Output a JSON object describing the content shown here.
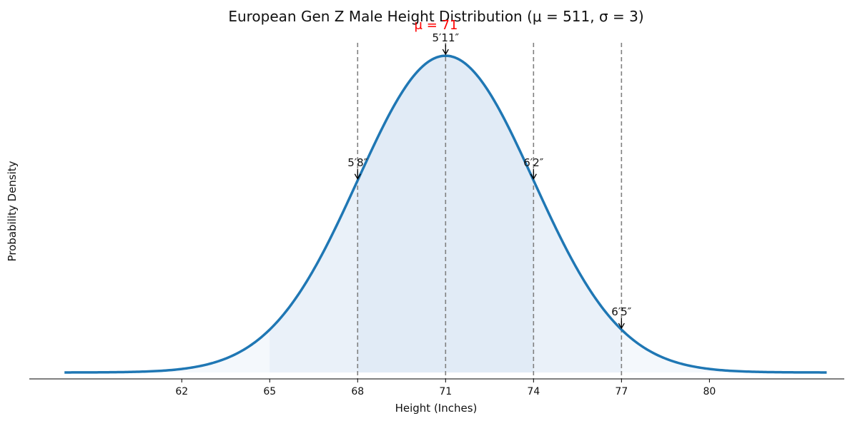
{
  "chart_data": {
    "type": "line",
    "title": "European Gen Z Male Height Distribution (μ = 511, σ = 3)",
    "xlabel": "Height (Inches)",
    "ylabel": "Probability Density",
    "mean": 71,
    "std": 3,
    "x_range": [
      58,
      84
    ],
    "xlim": [
      56.8,
      84.6
    ],
    "ylim": [
      -0.0027,
      0.139
    ],
    "x_ticks": [
      62,
      65,
      68,
      71,
      74,
      77,
      80
    ],
    "shaded_regions": [
      {
        "from": 58,
        "to": 84,
        "opacity": 0.12
      },
      {
        "from": 65,
        "to": 77,
        "opacity": 0.12
      },
      {
        "from": 68,
        "to": 74,
        "opacity": 0.12
      }
    ],
    "reference_lines": [
      68,
      71,
      74,
      77
    ],
    "annotations": [
      {
        "x": 68,
        "label": "5′8″"
      },
      {
        "x": 71,
        "label": "5′11″"
      },
      {
        "x": 74,
        "label": "6′2″"
      },
      {
        "x": 77,
        "label": "6′5″"
      }
    ],
    "mean_label": "μ = 71",
    "grid": false,
    "legend": "none",
    "colors": {
      "curve": "#1f77b4",
      "fill": "#a8c8e6",
      "reference_line": "#808080",
      "mean_label": "#ff0000"
    }
  }
}
